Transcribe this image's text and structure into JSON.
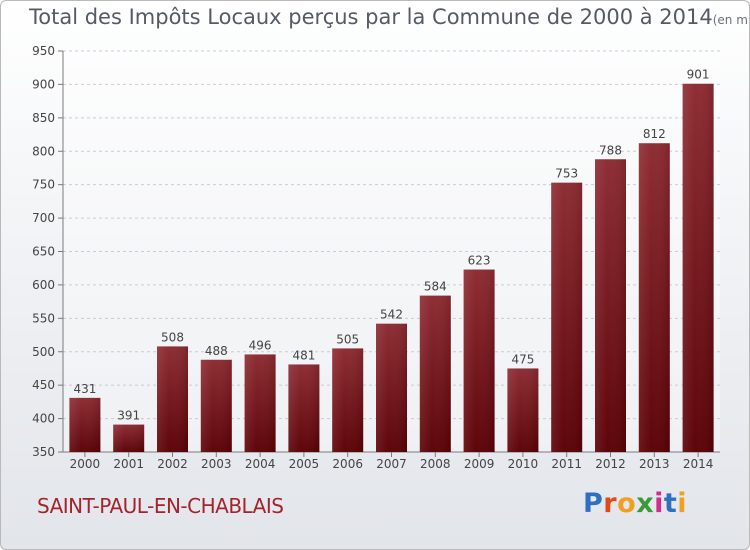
{
  "title": "Total des Impôts Locaux perçus par la Commune de 2000 à 2014",
  "title_unit": "(en milliers d'€)",
  "commune": "SAINT-PAUL-EN-CHABLAIS",
  "brand": "Proxiti",
  "colors": {
    "bar_dark": "#5a0005",
    "bar_light": "#8c2a31",
    "commune": "#a5242b",
    "brand_letters": [
      "#2f6fc0",
      "#e04a1a",
      "#f0a020",
      "#3a9a3a",
      "#d22c8a",
      "#2f6fc0",
      "#f0a020"
    ]
  },
  "chart_data": {
    "type": "bar",
    "categories": [
      "2000",
      "2001",
      "2002",
      "2003",
      "2004",
      "2005",
      "2006",
      "2007",
      "2008",
      "2009",
      "2010",
      "2011",
      "2012",
      "2013",
      "2014"
    ],
    "values": [
      431,
      391,
      508,
      488,
      496,
      481,
      505,
      542,
      584,
      623,
      475,
      753,
      788,
      812,
      901
    ],
    "ylim": [
      350,
      950
    ],
    "yticks": [
      350,
      400,
      450,
      500,
      550,
      600,
      650,
      700,
      750,
      800,
      850,
      900,
      950
    ],
    "grid": "dashed horizontal",
    "xlabel": "",
    "ylabel": ""
  }
}
